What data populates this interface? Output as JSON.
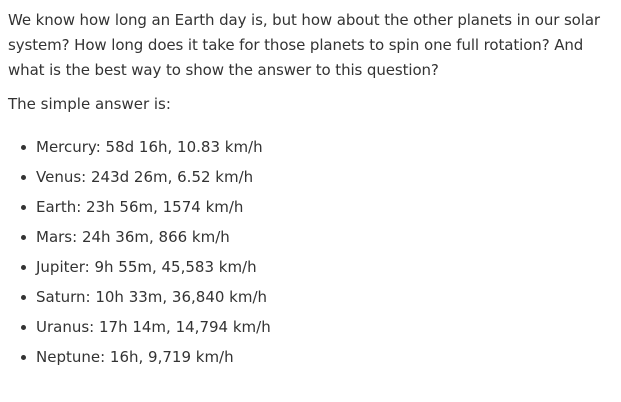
{
  "article": {
    "intro": "We know how long an Earth day is, but how about the other planets in our solar system? How long does it take for those planets to spin one full rotation? And what is the best way to show the answer to this question?",
    "answer_lead": "The simple answer is:",
    "planets": [
      {
        "text": "Mercury: 58d 16h, 10.83 km/h"
      },
      {
        "text": "Venus: 243d 26m, 6.52 km/h"
      },
      {
        "text": "Earth: 23h 56m, 1574 km/h"
      },
      {
        "text": "Mars: 24h 36m, 866 km/h"
      },
      {
        "text": "Jupiter: 9h 55m, 45,583 km/h"
      },
      {
        "text": "Saturn: 10h 33m, 36,840 km/h"
      },
      {
        "text": "Uranus: 17h 14m, 14,794 km/h"
      },
      {
        "text": "Neptune: 16h, 9,719 km/h"
      }
    ]
  }
}
